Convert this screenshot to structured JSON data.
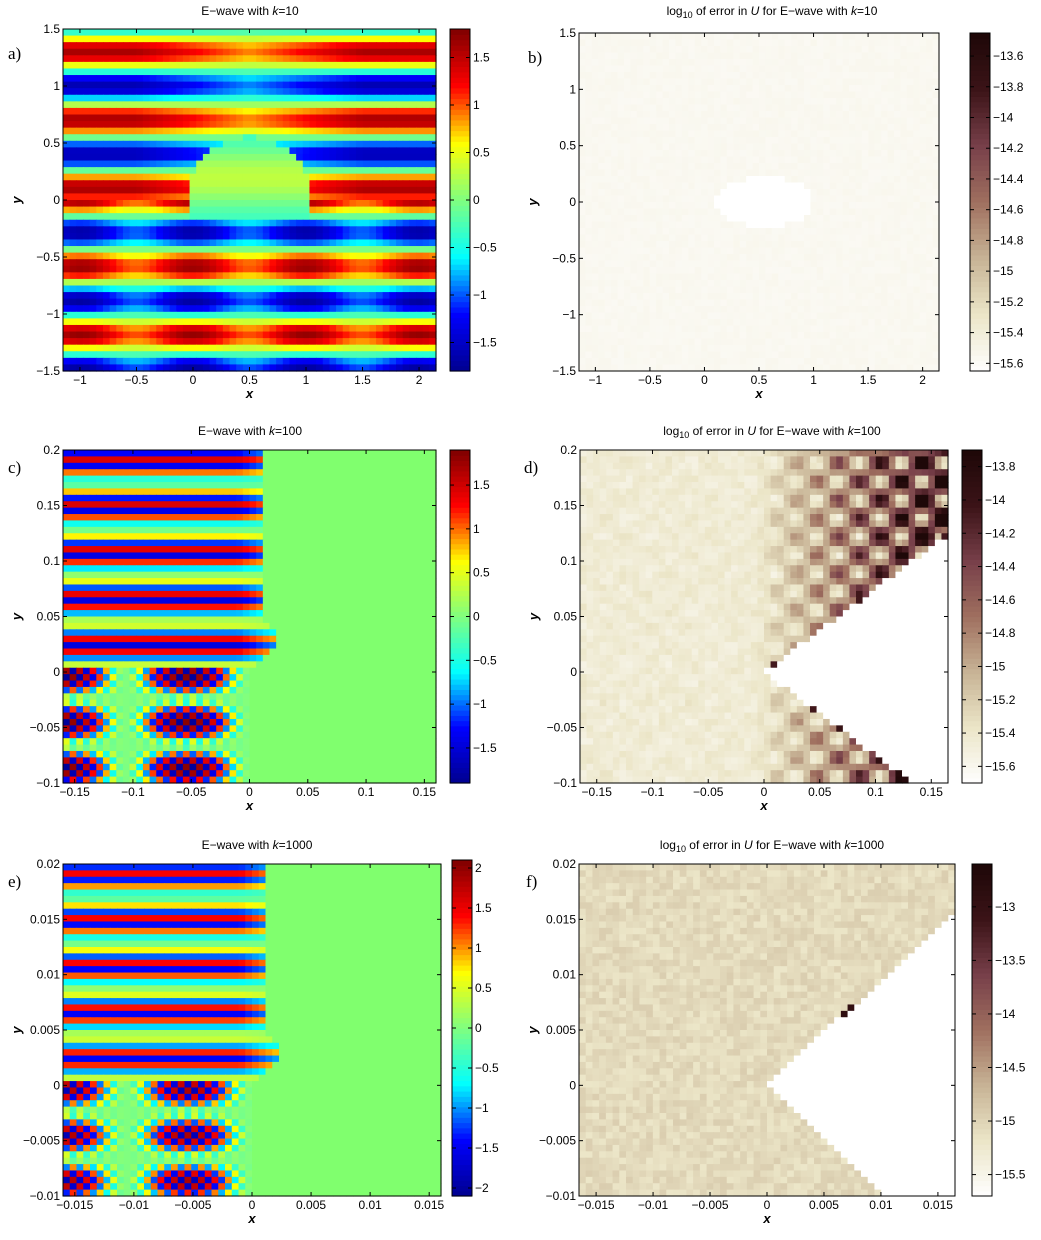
{
  "figure": {
    "panels": [
      {
        "label": "a)",
        "title": "E−wave with k=10",
        "title_parts": [
          "E−wave with ",
          "k",
          "=10"
        ]
      },
      {
        "label": "b)",
        "title": "log10 of error in U for E−wave with k=10",
        "title_parts": [
          "log",
          "10",
          " of error in ",
          "U",
          " for E−wave with ",
          "k",
          "=10"
        ]
      },
      {
        "label": "c)",
        "title": "E−wave with k=100",
        "title_parts": [
          "E−wave with ",
          "k",
          "=100"
        ]
      },
      {
        "label": "d)",
        "title": "log10 of error in U for E−wave with k=100",
        "title_parts": [
          "log",
          "10",
          " of error in ",
          "U",
          " for E−wave with ",
          "k",
          "=100"
        ]
      },
      {
        "label": "e)",
        "title": "E−wave with k=1000",
        "title_parts": [
          "E−wave with ",
          "k",
          "=1000"
        ]
      },
      {
        "label": "f)",
        "title": "log10 of error in U for E−wave with k=1000",
        "title_parts": [
          "log",
          "10",
          " of error in ",
          "U",
          " for E−wave with ",
          "k",
          "=1000"
        ]
      }
    ]
  },
  "colors": {
    "jet": [
      "#00008f",
      "#0000ff",
      "#00ffff",
      "#80ff80",
      "#ffff00",
      "#ff0000",
      "#800000"
    ],
    "pink": [
      "#ffffff",
      "#ece6c8",
      "#c8b496",
      "#a07060",
      "#78404a",
      "#3c1418",
      "#1e0808"
    ],
    "domain_field": "#80ff6e"
  },
  "chart_data": [
    {
      "type": "heatmap",
      "title": "E−wave with k=10",
      "xlabel": "x",
      "ylabel": "y",
      "xlim": [
        -1.15,
        2.15
      ],
      "ylim": [
        -1.5,
        1.5
      ],
      "xticks": [
        -1,
        -0.5,
        0,
        0.5,
        1,
        1.5,
        2
      ],
      "xtick_labels": [
        "−1",
        "−0.5",
        "0",
        "0.5",
        "1",
        "1.5",
        "2"
      ],
      "yticks": [
        -1.5,
        -1,
        -0.5,
        0,
        0.5,
        1,
        1.5
      ],
      "ytick_labels": [
        "−1.5",
        "−1",
        "−0.5",
        "0",
        "0.5",
        "1",
        "1.5"
      ],
      "colorbar": {
        "colormap": "jet",
        "clim": [
          -1.8,
          1.8
        ],
        "ticks": [
          -1.5,
          -1,
          -0.5,
          0,
          0.5,
          1,
          1.5
        ],
        "tick_labels": [
          "−1.5",
          "−1",
          "−0.5",
          "0",
          "0.5",
          "1",
          "1.5"
        ]
      },
      "field": {
        "kind": "wave",
        "k": 10,
        "scale": 1,
        "shadow": false
      }
    },
    {
      "type": "heatmap",
      "title": "log10 of error in U for E−wave with k=10",
      "xlabel": "x",
      "ylabel": "y",
      "xlim": [
        -1.15,
        2.15
      ],
      "ylim": [
        -1.5,
        1.5
      ],
      "xticks": [
        -1,
        -0.5,
        0,
        0.5,
        1,
        1.5,
        2
      ],
      "xtick_labels": [
        "−1",
        "−0.5",
        "0",
        "0.5",
        "1",
        "1.5",
        "2"
      ],
      "yticks": [
        -1.5,
        -1,
        -0.5,
        0,
        0.5,
        1,
        1.5
      ],
      "ytick_labels": [
        "−1.5",
        "−1",
        "−0.5",
        "0",
        "0.5",
        "1",
        "1.5"
      ],
      "colorbar": {
        "colormap": "pink",
        "clim": [
          -15.65,
          -13.45
        ],
        "ticks": [
          -15.6,
          -15.4,
          -15.2,
          -15,
          -14.8,
          -14.6,
          -14.4,
          -14.2,
          -14,
          -13.8,
          -13.6
        ],
        "tick_labels": [
          "−15.6",
          "−15.4",
          "−15.2",
          "−15",
          "−14.8",
          "−14.6",
          "−14.4",
          "−14.2",
          "−14",
          "−13.8",
          "−13.6"
        ]
      },
      "field": {
        "kind": "error",
        "k": 10,
        "scale": 1,
        "level": 0.03,
        "obstacle": "teardrop"
      }
    },
    {
      "type": "heatmap",
      "title": "E−wave with k=100",
      "xlabel": "x",
      "ylabel": "y",
      "xlim": [
        -0.16,
        0.16
      ],
      "ylim": [
        -0.1,
        0.2
      ],
      "xticks": [
        -0.15,
        -0.1,
        -0.05,
        0,
        0.05,
        0.1,
        0.15
      ],
      "xtick_labels": [
        "−0.15",
        "−0.1",
        "−0.05",
        "0",
        "0.05",
        "0.1",
        "0.15"
      ],
      "yticks": [
        -0.1,
        -0.05,
        0,
        0.05,
        0.1,
        0.15,
        0.2
      ],
      "ytick_labels": [
        "−0.1",
        "−0.05",
        "0",
        "0.05",
        "0.1",
        "0.15",
        "0.2"
      ],
      "colorbar": {
        "colormap": "jet",
        "clim": [
          -1.9,
          1.9
        ],
        "ticks": [
          -1.5,
          -1,
          -0.5,
          0,
          0.5,
          1,
          1.5
        ],
        "tick_labels": [
          "−1.5",
          "−1",
          "−0.5",
          "0",
          "0.5",
          "1",
          "1.5"
        ]
      },
      "field": {
        "kind": "wave",
        "k": 100,
        "scale": 0.1,
        "shadow": true
      }
    },
    {
      "type": "heatmap",
      "title": "log10 of error in U for E−wave with k=100",
      "xlabel": "x",
      "ylabel": "y",
      "xlim": [
        -0.165,
        0.165
      ],
      "ylim": [
        -0.1,
        0.2
      ],
      "xticks": [
        -0.15,
        -0.1,
        -0.05,
        0,
        0.05,
        0.1,
        0.15
      ],
      "xtick_labels": [
        "−0.15",
        "−0.1",
        "−0.05",
        "0",
        "0.05",
        "0.1",
        "0.15"
      ],
      "yticks": [
        -0.1,
        -0.05,
        0,
        0.05,
        0.1,
        0.15,
        0.2
      ],
      "ytick_labels": [
        "−0.1",
        "−0.05",
        "0",
        "0.05",
        "0.1",
        "0.15",
        "0.2"
      ],
      "colorbar": {
        "colormap": "pink",
        "clim": [
          -15.7,
          -13.7
        ],
        "ticks": [
          -15.6,
          -15.4,
          -15.2,
          -15,
          -14.8,
          -14.6,
          -14.4,
          -14.2,
          -14,
          -13.8
        ],
        "tick_labels": [
          "−15.6",
          "−15.4",
          "−15.2",
          "−15",
          "−14.8",
          "−14.6",
          "−14.4",
          "−14.2",
          "−14",
          "−13.8"
        ]
      },
      "field": {
        "kind": "error",
        "k": 100,
        "scale": 0.1,
        "level": 0.2,
        "obstacle": "wedge"
      }
    },
    {
      "type": "heatmap",
      "title": "E−wave with k=1000",
      "xlabel": "x",
      "ylabel": "y",
      "xlim": [
        -0.016,
        0.016
      ],
      "ylim": [
        -0.01,
        0.02
      ],
      "xticks": [
        -0.015,
        -0.01,
        -0.005,
        0,
        0.005,
        0.01,
        0.015
      ],
      "xtick_labels": [
        "−0.015",
        "−0.01",
        "−0.005",
        "0",
        "0.005",
        "0.01",
        "0.015"
      ],
      "yticks": [
        -0.01,
        -0.005,
        0,
        0.005,
        0.01,
        0.015,
        0.02
      ],
      "ytick_labels": [
        "−0.01",
        "−0.005",
        "0",
        "0.005",
        "0.01",
        "0.015",
        "0.02"
      ],
      "colorbar": {
        "colormap": "jet",
        "clim": [
          -2.1,
          2.1
        ],
        "ticks": [
          -2,
          -1.5,
          -1,
          -0.5,
          0,
          0.5,
          1,
          1.5,
          2
        ],
        "tick_labels": [
          "−2",
          "−1.5",
          "−1",
          "−0.5",
          "0",
          "0.5",
          "1",
          "1.5",
          "2"
        ]
      },
      "field": {
        "kind": "wave",
        "k": 1000,
        "scale": 0.01,
        "shadow": true
      }
    },
    {
      "type": "heatmap",
      "title": "log10 of error in U for E−wave with k=1000",
      "xlabel": "x",
      "ylabel": "y",
      "xlim": [
        -0.0165,
        0.0165
      ],
      "ylim": [
        -0.01,
        0.02
      ],
      "xticks": [
        -0.015,
        -0.01,
        -0.005,
        0,
        0.005,
        0.01,
        0.015
      ],
      "xtick_labels": [
        "−0.015",
        "−0.01",
        "−0.005",
        "0",
        "0.005",
        "0.01",
        "0.015"
      ],
      "yticks": [
        -0.01,
        -0.005,
        0,
        0.005,
        0.01,
        0.015,
        0.02
      ],
      "ytick_labels": [
        "−0.01",
        "−0.005",
        "0",
        "0.005",
        "0.01",
        "0.015",
        "0.02"
      ],
      "colorbar": {
        "colormap": "pink",
        "clim": [
          -15.7,
          -12.6
        ],
        "ticks": [
          -15.5,
          -15,
          -14.5,
          -14,
          -13.5,
          -13
        ],
        "tick_labels": [
          "−15.5",
          "−15",
          "−14.5",
          "−14",
          "−13.5",
          "−13"
        ]
      },
      "field": {
        "kind": "error",
        "k": 1000,
        "scale": 0.01,
        "level": 0.3,
        "obstacle": "wedge"
      }
    }
  ]
}
